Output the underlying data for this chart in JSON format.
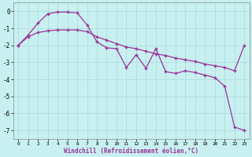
{
  "xlabel": "Windchill (Refroidissement éolien,°C)",
  "background_color": "#c8f0f0",
  "grid_color": "#b0dede",
  "line_color": "#993399",
  "ylim": [
    -7.5,
    0.5
  ],
  "xlim": [
    -0.5,
    23.5
  ],
  "yticks": [
    0,
    -1,
    -2,
    -3,
    -4,
    -5,
    -6,
    -7
  ],
  "xticks": [
    0,
    1,
    2,
    3,
    4,
    5,
    6,
    7,
    8,
    9,
    10,
    11,
    12,
    13,
    14,
    15,
    16,
    17,
    18,
    19,
    20,
    21,
    22,
    23
  ],
  "line1_x": [
    0,
    1,
    2,
    3,
    4,
    5,
    6,
    7,
    8,
    9,
    10,
    11,
    12,
    13,
    14,
    15,
    16,
    17,
    18,
    19,
    20,
    21,
    22,
    23
  ],
  "line1_y": [
    -2.0,
    -1.5,
    -1.25,
    -1.15,
    -1.1,
    -1.1,
    -1.1,
    -1.2,
    -1.5,
    -1.7,
    -1.9,
    -2.1,
    -2.2,
    -2.35,
    -2.5,
    -2.6,
    -2.75,
    -2.85,
    -2.95,
    -3.1,
    -3.2,
    -3.3,
    -3.5,
    -2.0
  ],
  "line2_x": [
    0,
    1,
    2,
    3,
    4,
    5,
    6,
    7,
    8,
    9,
    10,
    11,
    12,
    13,
    14,
    15,
    16,
    17,
    18,
    19,
    20,
    21,
    22,
    23
  ],
  "line2_y": [
    -2.0,
    -1.4,
    -0.7,
    -0.15,
    -0.05,
    -0.05,
    -0.1,
    -0.8,
    -1.8,
    -2.15,
    -2.2,
    -3.3,
    -2.55,
    -3.35,
    -2.2,
    -3.55,
    -3.65,
    -3.5,
    -3.6,
    -3.75,
    -3.9,
    -4.4,
    -6.8,
    -7.0
  ]
}
